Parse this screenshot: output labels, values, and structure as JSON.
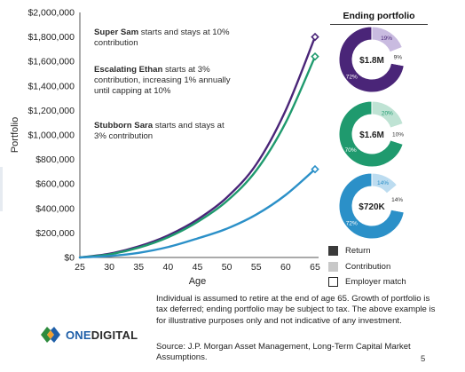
{
  "chart_data": {
    "type": "line",
    "ylabel": "Portfolio",
    "xlabel": "Age",
    "x": [
      25,
      30,
      35,
      40,
      45,
      50,
      55,
      60,
      65
    ],
    "xlim": [
      25,
      65
    ],
    "ylim": [
      0,
      2000000
    ],
    "y_ticks": [
      0,
      200000,
      400000,
      600000,
      800000,
      1000000,
      1200000,
      1400000,
      1600000,
      1800000,
      2000000
    ],
    "y_tick_labels": [
      "$0",
      "$200,000",
      "$400,000",
      "$600,000",
      "$800,000",
      "$1,000,000",
      "$1,200,000",
      "$1,400,000",
      "$1,600,000",
      "$1,800,000",
      "$2,000,000"
    ],
    "x_tick_labels": [
      "25",
      "30",
      "35",
      "40",
      "45",
      "50",
      "55",
      "60",
      "65"
    ],
    "grid": false,
    "series": [
      {
        "color": "#4a2578",
        "values": [
          0,
          30000,
          90000,
          180000,
          310000,
          490000,
          760000,
          1200000,
          1800000
        ]
      },
      {
        "color": "#1f9a6e",
        "values": [
          0,
          25000,
          80000,
          165000,
          290000,
          460000,
          710000,
          1100000,
          1640000
        ]
      },
      {
        "color": "#2b90c8",
        "values": [
          0,
          12000,
          38000,
          85000,
          155000,
          235000,
          350000,
          510000,
          720000
        ]
      }
    ]
  },
  "annotations": [
    {
      "name": "Super Sam",
      "text": " starts and stays at 10% contribution",
      "color": "#6a3aa0"
    },
    {
      "name": "Escalating Ethan",
      "text": " starts at 3% contribution, increasing 1% annually until capping at 10%",
      "color": "#1f9a6e"
    },
    {
      "name": "Stubborn Sara",
      "text": " starts and stays at 3% contribution",
      "color": "#2b90c8"
    }
  ],
  "panel": {
    "title": "Ending portfolio",
    "donuts": [
      {
        "center": "$1.8M",
        "return_pct": 72,
        "contribution_pct": 19,
        "match_pct": 9,
        "labels": [
          "72%",
          "19%",
          "9%"
        ],
        "color": "#4a2578",
        "light": "#c9bbe0"
      },
      {
        "center": "$1.6M",
        "return_pct": 70,
        "contribution_pct": 20,
        "match_pct": 10,
        "labels": [
          "70%",
          "20%",
          "10%"
        ],
        "color": "#1f9a6e",
        "light": "#bfe3d4"
      },
      {
        "center": "$720K",
        "return_pct": 72,
        "contribution_pct": 14,
        "match_pct": 14,
        "labels": [
          "72%",
          "14%",
          "14%"
        ],
        "color": "#2b90c8",
        "light": "#bcdcf0"
      }
    ]
  },
  "legend": [
    {
      "label": "Return",
      "swatch": "#3a3a3a"
    },
    {
      "label": "Contribution",
      "swatch": "#c8c8c8"
    },
    {
      "label": "Employer match",
      "swatch": "#ffffff"
    }
  ],
  "footnote": "Individual is assumed to retire at the end of age 65. Growth of portfolio is tax deferred; ending portfolio may be subject to tax. The above example is for illustrative purposes only and not indicative of any investment.",
  "source": "Source: J.P. Morgan Asset Management, Long-Term Capital Market Assumptions.",
  "logo": {
    "one": "ONE",
    "digital": "DIGITAL"
  },
  "page_number": "5"
}
